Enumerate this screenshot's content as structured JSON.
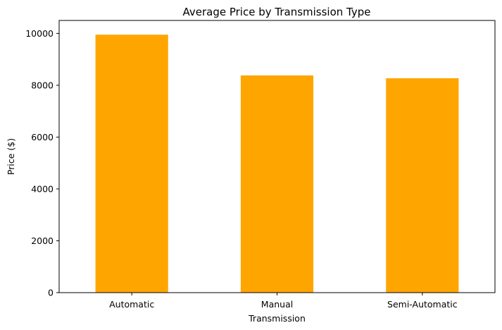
{
  "chart_data": {
    "type": "bar",
    "title": "Average Price by Transmission Type",
    "xlabel": "Transmission",
    "ylabel": "Price ($)",
    "categories": [
      "Automatic",
      "Manual",
      "Semi-Automatic"
    ],
    "values": [
      9950,
      8380,
      8270
    ],
    "ylim": [
      0,
      10500
    ],
    "yticks": [
      0,
      2000,
      4000,
      6000,
      8000,
      10000
    ],
    "bar_color": "#FFA500",
    "grid": false,
    "legend": "none"
  }
}
